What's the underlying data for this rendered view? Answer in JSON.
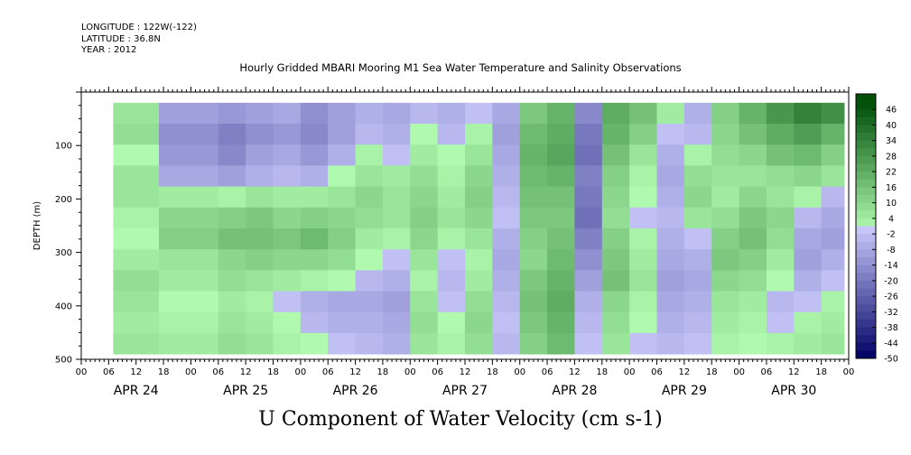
{
  "header": {
    "longitude": "LONGITUDE : 122W(-122)",
    "latitude": "LATITUDE : 36.8N",
    "year": "YEAR : 2012"
  },
  "chart_data": {
    "type": "heatmap",
    "title": "Hourly Gridded MBARI Mooring M1 Sea Water Temperature and Salinity Observations",
    "caption": "U Component of Water Velocity (cm s-1)",
    "ylabel": "DEPTH (m)",
    "ylim": [
      500,
      0
    ],
    "yticks": [
      "100",
      "200",
      "300",
      "400",
      "500"
    ],
    "ytick_values": [
      100,
      200,
      300,
      400,
      500
    ],
    "x_hour_labels": [
      "00",
      "06",
      "12",
      "18",
      "00",
      "06",
      "12",
      "18",
      "00",
      "06",
      "12",
      "18",
      "00",
      "06",
      "12",
      "18",
      "00",
      "06",
      "12",
      "18",
      "00",
      "06",
      "12",
      "18",
      "00",
      "06",
      "12",
      "18",
      "00"
    ],
    "x_day_labels": [
      "APR 24",
      "APR 25",
      "APR 26",
      "APR 27",
      "APR 28",
      "APR 29",
      "APR 30"
    ],
    "xlim_hours": [
      0,
      168
    ],
    "data_depth_range": [
      20,
      490
    ],
    "colorbar": {
      "levels": [
        "46",
        "40",
        "34",
        "28",
        "22",
        "16",
        "10",
        "4",
        "-2",
        "-8",
        "-14",
        "-20",
        "-26",
        "-32",
        "-38",
        "-44",
        "-50"
      ],
      "range": [
        -50,
        52
      ]
    },
    "columns": [
      {
        "hour": 7,
        "u": [
          6,
          8,
          0,
          6,
          6,
          2,
          0,
          4,
          8,
          6,
          4,
          6
        ]
      },
      {
        "hour": 27,
        "u": [
          -10,
          -14,
          -12,
          -8,
          4,
          10,
          12,
          6,
          4,
          0,
          2,
          4
        ]
      },
      {
        "hour": 33,
        "u": [
          -12,
          -18,
          -16,
          -10,
          2,
          12,
          16,
          10,
          8,
          4,
          6,
          8
        ]
      },
      {
        "hour": 39,
        "u": [
          -10,
          -14,
          -10,
          -6,
          6,
          14,
          16,
          12,
          6,
          2,
          4,
          6
        ]
      },
      {
        "hour": 45,
        "u": [
          -8,
          -12,
          -8,
          -4,
          4,
          10,
          14,
          10,
          4,
          -2,
          0,
          2
        ]
      },
      {
        "hour": 51,
        "u": [
          -14,
          -16,
          -12,
          -6,
          4,
          12,
          18,
          10,
          2,
          -6,
          -4,
          0
        ]
      },
      {
        "hour": 57,
        "u": [
          -10,
          -10,
          -6,
          0,
          6,
          10,
          12,
          8,
          0,
          -8,
          -6,
          -2
        ]
      },
      {
        "hour": 63,
        "u": [
          -6,
          -4,
          2,
          6,
          10,
          8,
          4,
          0,
          -4,
          -8,
          -6,
          -4
        ]
      },
      {
        "hour": 69,
        "u": [
          -8,
          -6,
          -2,
          4,
          6,
          6,
          2,
          -2,
          -6,
          -10,
          -8,
          -6
        ]
      },
      {
        "hour": 75,
        "u": [
          -4,
          0,
          4,
          8,
          10,
          12,
          10,
          6,
          2,
          6,
          8,
          6
        ]
      },
      {
        "hour": 81,
        "u": [
          -6,
          -4,
          0,
          2,
          4,
          6,
          2,
          -2,
          -4,
          -2,
          0,
          2
        ]
      },
      {
        "hour": 87,
        "u": [
          -2,
          2,
          6,
          10,
          12,
          10,
          6,
          2,
          4,
          8,
          10,
          8
        ]
      },
      {
        "hour": 93,
        "u": [
          -8,
          -10,
          -8,
          -6,
          -4,
          -2,
          -6,
          -8,
          -6,
          -4,
          -2,
          -4
        ]
      },
      {
        "hour": 99,
        "u": [
          14,
          18,
          20,
          18,
          16,
          14,
          12,
          10,
          14,
          16,
          14,
          12
        ]
      },
      {
        "hour": 105,
        "u": [
          20,
          22,
          24,
          20,
          16,
          14,
          16,
          18,
          20,
          22,
          20,
          18
        ]
      },
      {
        "hour": 111,
        "u": [
          -16,
          -20,
          -22,
          -18,
          -20,
          -22,
          -18,
          -14,
          -10,
          -6,
          -4,
          -2
        ]
      },
      {
        "hour": 117,
        "u": [
          22,
          20,
          16,
          12,
          10,
          8,
          12,
          14,
          16,
          10,
          8,
          6
        ]
      },
      {
        "hour": 123,
        "u": [
          16,
          12,
          6,
          2,
          0,
          -2,
          2,
          4,
          6,
          2,
          0,
          -2
        ]
      },
      {
        "hour": 129,
        "u": [
          4,
          -2,
          -6,
          -8,
          -6,
          -4,
          -6,
          -8,
          -10,
          -8,
          -6,
          -4
        ]
      },
      {
        "hour": 135,
        "u": [
          -6,
          -4,
          2,
          8,
          10,
          6,
          -2,
          -6,
          -8,
          -6,
          -4,
          -2
        ]
      },
      {
        "hour": 141,
        "u": [
          12,
          10,
          8,
          6,
          4,
          8,
          12,
          14,
          10,
          6,
          4,
          2
        ]
      },
      {
        "hour": 147,
        "u": [
          20,
          16,
          10,
          6,
          10,
          14,
          16,
          12,
          8,
          4,
          2,
          0
        ]
      },
      {
        "hour": 153,
        "u": [
          28,
          22,
          16,
          8,
          6,
          10,
          8,
          4,
          0,
          -4,
          -2,
          2
        ]
      },
      {
        "hour": 159,
        "u": [
          34,
          26,
          18,
          10,
          2,
          -4,
          -8,
          -10,
          -6,
          -2,
          2,
          4
        ]
      },
      {
        "hour": 165,
        "u": [
          30,
          20,
          12,
          6,
          -4,
          -8,
          -10,
          -6,
          -2,
          2,
          4,
          6
        ]
      }
    ]
  }
}
